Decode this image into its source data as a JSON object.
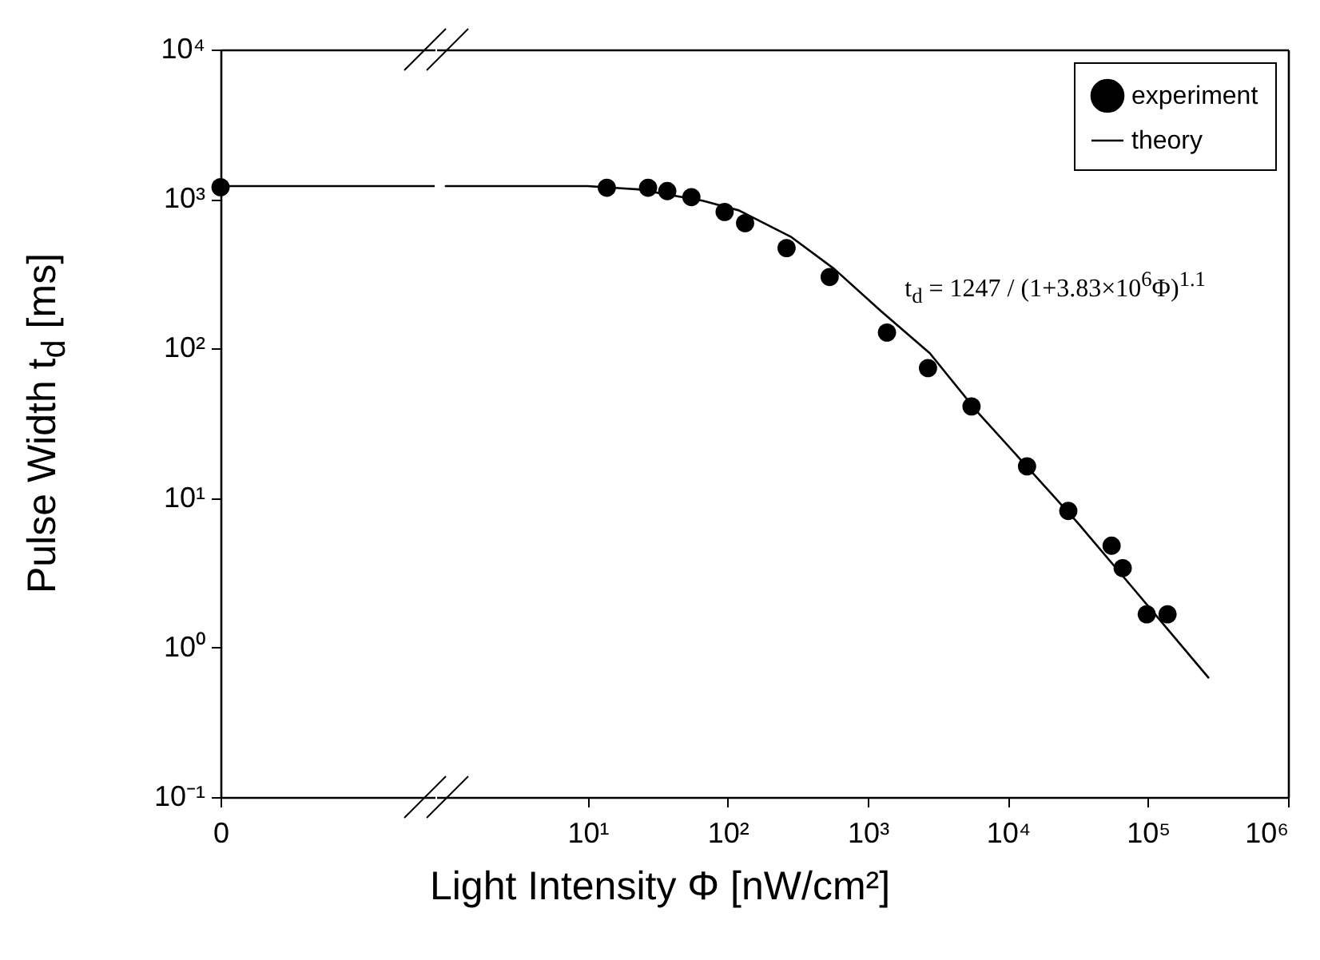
{
  "chart_data": [
    {
      "type": "scatter",
      "log": "y",
      "categories": [
        "0"
      ],
      "ylim": [
        0.1,
        10000
      ],
      "yticks": [
        {
          "value": 0.1,
          "label": "10⁻¹"
        },
        {
          "value": 1,
          "label": "10⁰"
        },
        {
          "value": 10,
          "label": "10¹"
        },
        {
          "value": 100,
          "label": "10²"
        },
        {
          "value": 1000,
          "label": "10³"
        },
        {
          "value": 10000,
          "label": "10⁴"
        }
      ],
      "ylabel": "Pulse Width t$_{d}$ [ms]",
      "grid": false,
      "ref_lines": [
        {
          "axis": "y",
          "value": 1220,
          "color": "#000000",
          "line_style": "solid"
        }
      ],
      "series": [
        {
          "color": "#000000",
          "marker": "circle",
          "values": [
            1200
          ]
        }
      ]
    },
    {
      "type": "scatter",
      "log": "xy",
      "xlim": [
        0.83,
        1000000
      ],
      "xticks": [
        {
          "value": 10,
          "label": "10¹"
        },
        {
          "value": 100,
          "label": "10²"
        },
        {
          "value": 1000,
          "label": "10³"
        },
        {
          "value": 10000,
          "label": "10⁴"
        },
        {
          "value": 100000,
          "label": "10⁵"
        },
        {
          "value": 1000000,
          "label": "10⁶"
        }
      ],
      "ylim": [
        0.1,
        10000
      ],
      "tick_labels": "x",
      "xlabel": "Light Intensity Φ [nW/cm²]",
      "legend": "top right",
      "grid": false,
      "annotations": [
        "t$_{d}$ = 1247 / (1+3.83×10$^{6}$Φ)$^{1.1}$"
      ],
      "series": [
        {
          "name": "experiment",
          "color": "#000000",
          "marker": "circle",
          "x": [
            13.7,
            27,
            37,
            55,
            95,
            133,
            263,
            534,
            1370,
            2690,
            5500,
            13700,
            27000,
            55000,
            66000,
            98000,
            138000
          ],
          "values": [
            1190,
            1190,
            1130,
            1030,
            820,
            690,
            470,
            301,
            128,
            74,
            41,
            16.3,
            8.2,
            4.8,
            3.4,
            1.67,
            1.67
          ]
        },
        {
          "name": "theory",
          "type": "line",
          "color": "#000000",
          "line_style": "solid",
          "x": [
            0.97,
            10,
            23,
            66,
            120,
            285,
            577,
            1260,
            2770,
            6080,
            13300,
            31600,
            77000,
            270000
          ],
          "values": [
            1220,
            1220,
            1160,
            975,
            840,
            556,
            340,
            176,
            93,
            37.5,
            16.7,
            6.8,
            2.54,
            0.63
          ]
        }
      ]
    }
  ]
}
